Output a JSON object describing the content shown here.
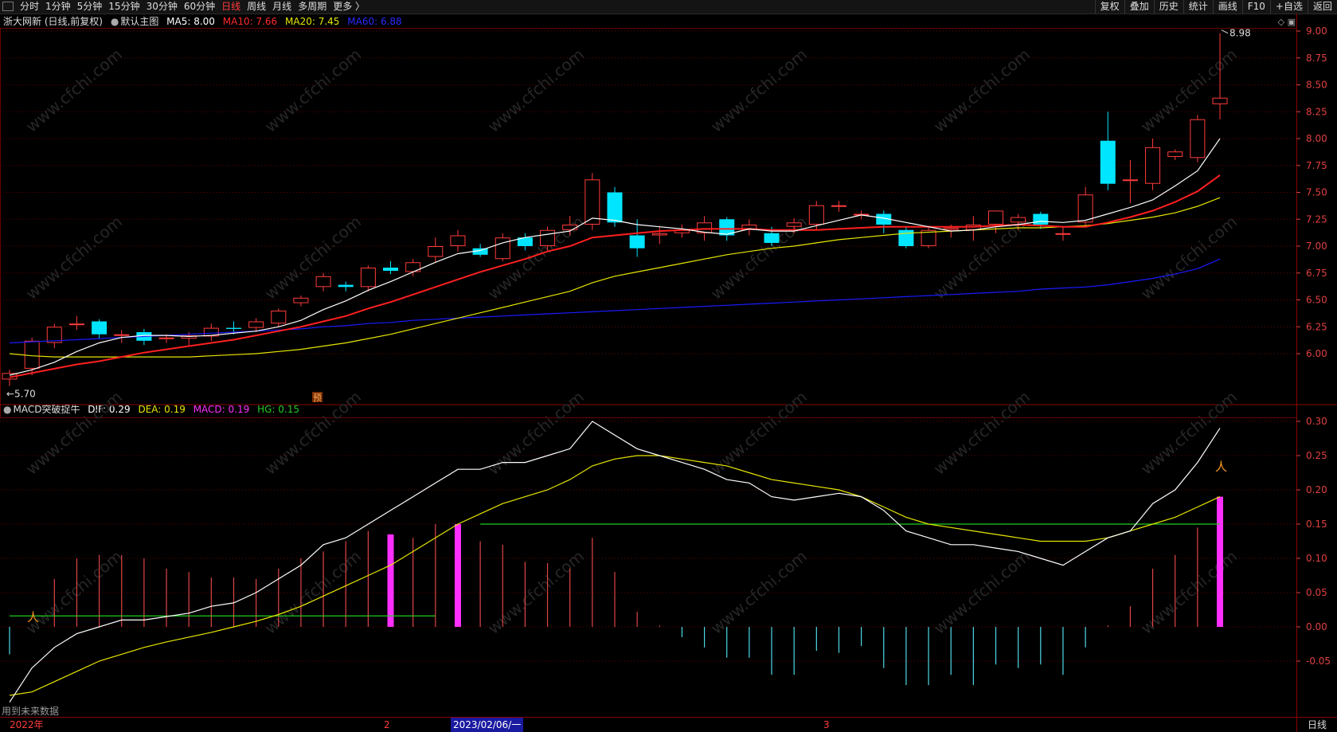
{
  "toolbar": {
    "left_items": [
      {
        "label": "分时",
        "active": false
      },
      {
        "label": "1分钟",
        "active": false
      },
      {
        "label": "5分钟",
        "active": false
      },
      {
        "label": "15分钟",
        "active": false
      },
      {
        "label": "30分钟",
        "active": false
      },
      {
        "label": "60分钟",
        "active": false
      },
      {
        "label": "日线",
        "active": true
      },
      {
        "label": "周线",
        "active": false
      },
      {
        "label": "月线",
        "active": false
      },
      {
        "label": "多周期",
        "active": false
      },
      {
        "label": "更多 〉",
        "active": false
      }
    ],
    "right_items": [
      "复权",
      "叠加",
      "历史",
      "统计",
      "画线",
      "F10",
      "+自选",
      "返回"
    ]
  },
  "main_legend": {
    "stock": "浙大网新 (日线,前复权)",
    "template": "默认主图",
    "ma5": "MA5: 8.00",
    "ma10": "MA10: 7.66",
    "ma20": "MA20: 7.45",
    "ma60": "MA60: 6.88"
  },
  "macd_legend": {
    "name": "MACD突破捉牛",
    "dif": "DIF: 0.29",
    "dea": "DEA: 0.19",
    "macd": "MACD: 0.19",
    "hg": "HG: 0.15"
  },
  "price_axis": [
    "9.00",
    "8.75",
    "8.50",
    "8.25",
    "8.00",
    "7.75",
    "7.50",
    "7.25",
    "7.00",
    "6.75",
    "6.50",
    "6.25",
    "6.00"
  ],
  "macd_axis": [
    "0.30",
    "0.25",
    "0.20",
    "0.15",
    "0.10",
    "0.05",
    "0.00",
    "-0.05"
  ],
  "annotations": {
    "high": "8.98",
    "low": "←5.70",
    "forecast_marker": "预",
    "future_data_note": "用到未来数据",
    "watermark": "www.cfchi.com"
  },
  "statusbar": {
    "year": "2022年",
    "m2": "2",
    "date": "2023/02/06/一",
    "m3": "3",
    "period_tab": "日线"
  },
  "colors": {
    "up": "#ff3b3b",
    "down": "#00e5ff",
    "ma5": "#ffffff",
    "ma10": "#ff2020",
    "ma20": "#e6e600",
    "ma60": "#1a1aff",
    "dif": "#ffffff",
    "dea": "#e6e600",
    "macd_bar": "#ff2fff",
    "hg": "#22cc22",
    "grid": "#6a0000",
    "axis_text": "#e04040"
  },
  "chart_data": {
    "type": "candlestick",
    "ylim": [
      5.62,
      9.06
    ],
    "candles": [
      [
        5.76,
        5.82,
        5.7,
        5.85
      ],
      [
        5.86,
        6.12,
        5.8,
        6.15
      ],
      [
        6.1,
        6.25,
        6.05,
        6.28
      ],
      [
        6.27,
        6.28,
        6.22,
        6.35
      ],
      [
        6.3,
        6.18,
        6.14,
        6.32
      ],
      [
        6.18,
        6.18,
        6.1,
        6.22
      ],
      [
        6.2,
        6.12,
        6.08,
        6.23
      ],
      [
        6.14,
        6.15,
        6.1,
        6.18
      ],
      [
        6.14,
        6.17,
        6.08,
        6.2
      ],
      [
        6.16,
        6.24,
        6.12,
        6.28
      ],
      [
        6.24,
        6.23,
        6.18,
        6.3
      ],
      [
        6.24,
        6.3,
        6.2,
        6.33
      ],
      [
        6.28,
        6.4,
        6.25,
        6.42
      ],
      [
        6.47,
        6.52,
        6.44,
        6.54
      ],
      [
        6.62,
        6.72,
        6.58,
        6.75
      ],
      [
        6.64,
        6.62,
        6.58,
        6.67
      ],
      [
        6.62,
        6.8,
        6.58,
        6.82
      ],
      [
        6.8,
        6.77,
        6.74,
        6.86
      ],
      [
        6.76,
        6.85,
        6.72,
        6.88
      ],
      [
        6.9,
        7.0,
        6.85,
        7.08
      ],
      [
        7.0,
        7.1,
        6.95,
        7.15
      ],
      [
        6.98,
        6.92,
        6.9,
        7.02
      ],
      [
        6.88,
        7.08,
        6.86,
        7.12
      ],
      [
        7.08,
        7.0,
        6.96,
        7.12
      ],
      [
        7.0,
        7.15,
        6.96,
        7.18
      ],
      [
        7.15,
        7.2,
        7.1,
        7.28
      ],
      [
        7.2,
        7.62,
        7.15,
        7.68
      ],
      [
        7.5,
        7.22,
        7.18,
        7.55
      ],
      [
        7.1,
        6.98,
        6.9,
        7.25
      ],
      [
        7.1,
        7.12,
        7.02,
        7.18
      ],
      [
        7.12,
        7.15,
        7.08,
        7.2
      ],
      [
        7.12,
        7.22,
        7.05,
        7.28
      ],
      [
        7.25,
        7.1,
        7.05,
        7.27
      ],
      [
        7.15,
        7.2,
        7.1,
        7.25
      ],
      [
        7.12,
        7.03,
        7.0,
        7.18
      ],
      [
        7.18,
        7.22,
        7.12,
        7.26
      ],
      [
        7.2,
        7.38,
        7.15,
        7.42
      ],
      [
        7.38,
        7.38,
        7.32,
        7.42
      ],
      [
        7.3,
        7.3,
        7.25,
        7.33
      ],
      [
        7.3,
        7.2,
        7.12,
        7.33
      ],
      [
        7.15,
        7.0,
        6.98,
        7.18
      ],
      [
        7.0,
        7.15,
        6.98,
        7.18
      ],
      [
        7.15,
        7.17,
        7.08,
        7.2
      ],
      [
        7.15,
        7.2,
        7.05,
        7.28
      ],
      [
        7.2,
        7.33,
        7.12,
        7.33
      ],
      [
        7.22,
        7.27,
        7.15,
        7.3
      ],
      [
        7.3,
        7.2,
        7.16,
        7.32
      ],
      [
        7.12,
        7.12,
        7.05,
        7.18
      ],
      [
        7.22,
        7.48,
        7.18,
        7.55
      ],
      [
        7.98,
        7.58,
        7.52,
        8.25
      ],
      [
        7.62,
        7.62,
        7.4,
        7.8
      ],
      [
        7.58,
        7.92,
        7.52,
        8.0
      ],
      [
        7.83,
        7.88,
        7.8,
        7.9
      ],
      [
        7.82,
        8.18,
        7.78,
        8.22
      ],
      [
        8.32,
        8.38,
        8.18,
        8.98
      ]
    ],
    "ma5": [
      5.8,
      5.85,
      5.92,
      6.02,
      6.1,
      6.15,
      6.17,
      6.17,
      6.16,
      6.17,
      6.19,
      6.21,
      6.25,
      6.31,
      6.41,
      6.49,
      6.59,
      6.67,
      6.76,
      6.85,
      6.93,
      6.96,
      7.03,
      7.08,
      7.11,
      7.14,
      7.26,
      7.24,
      7.2,
      7.18,
      7.16,
      7.13,
      7.11,
      7.16,
      7.14,
      7.14,
      7.19,
      7.24,
      7.29,
      7.26,
      7.22,
      7.18,
      7.14,
      7.15,
      7.18,
      7.2,
      7.23,
      7.22,
      7.24,
      7.3,
      7.36,
      7.43,
      7.56,
      7.7,
      8.0
    ],
    "ma10": [
      5.78,
      5.82,
      5.86,
      5.9,
      5.93,
      5.97,
      6.01,
      6.04,
      6.07,
      6.1,
      6.13,
      6.17,
      6.21,
      6.25,
      6.3,
      6.35,
      6.42,
      6.48,
      6.55,
      6.62,
      6.69,
      6.76,
      6.82,
      6.88,
      6.95,
      7.0,
      7.08,
      7.1,
      7.12,
      7.14,
      7.15,
      7.16,
      7.16,
      7.16,
      7.15,
      7.15,
      7.15,
      7.16,
      7.17,
      7.18,
      7.18,
      7.18,
      7.18,
      7.18,
      7.19,
      7.2,
      7.19,
      7.18,
      7.18,
      7.22,
      7.27,
      7.33,
      7.41,
      7.51,
      7.66
    ],
    "ma20": [
      6.0,
      5.98,
      5.97,
      5.97,
      5.97,
      5.97,
      5.97,
      5.97,
      5.97,
      5.98,
      5.99,
      6.0,
      6.02,
      6.04,
      6.07,
      6.1,
      6.14,
      6.18,
      6.23,
      6.28,
      6.33,
      6.38,
      6.43,
      6.48,
      6.53,
      6.58,
      6.66,
      6.72,
      6.76,
      6.8,
      6.84,
      6.88,
      6.92,
      6.95,
      6.98,
      7.0,
      7.03,
      7.06,
      7.08,
      7.1,
      7.12,
      7.13,
      7.14,
      7.15,
      7.16,
      7.17,
      7.17,
      7.18,
      7.19,
      7.21,
      7.24,
      7.27,
      7.31,
      7.37,
      7.45
    ],
    "ma60": [
      6.1,
      6.11,
      6.12,
      6.13,
      6.14,
      6.15,
      6.16,
      6.17,
      6.18,
      6.19,
      6.2,
      6.21,
      6.22,
      6.23,
      6.25,
      6.26,
      6.28,
      6.29,
      6.31,
      6.32,
      6.33,
      6.34,
      6.35,
      6.36,
      6.37,
      6.38,
      6.39,
      6.4,
      6.41,
      6.42,
      6.43,
      6.44,
      6.45,
      6.46,
      6.47,
      6.48,
      6.49,
      6.5,
      6.51,
      6.52,
      6.53,
      6.54,
      6.55,
      6.56,
      6.57,
      6.58,
      6.6,
      6.61,
      6.62,
      6.64,
      6.67,
      6.7,
      6.74,
      6.79,
      6.88
    ],
    "macd_ylim": [
      -0.12,
      0.32
    ],
    "dif": [
      -0.11,
      -0.06,
      -0.03,
      -0.01,
      0.0,
      0.01,
      0.01,
      0.015,
      0.02,
      0.03,
      0.035,
      0.05,
      0.07,
      0.09,
      0.12,
      0.13,
      0.15,
      0.17,
      0.19,
      0.21,
      0.23,
      0.23,
      0.24,
      0.24,
      0.25,
      0.26,
      0.3,
      0.28,
      0.26,
      0.25,
      0.24,
      0.23,
      0.215,
      0.21,
      0.19,
      0.185,
      0.19,
      0.195,
      0.19,
      0.17,
      0.14,
      0.13,
      0.12,
      0.12,
      0.115,
      0.11,
      0.1,
      0.09,
      0.11,
      0.13,
      0.14,
      0.18,
      0.2,
      0.24,
      0.29
    ],
    "dea": [
      -0.1,
      -0.095,
      -0.08,
      -0.065,
      -0.05,
      -0.04,
      -0.03,
      -0.022,
      -0.015,
      -0.008,
      0.0,
      0.008,
      0.018,
      0.03,
      0.045,
      0.06,
      0.075,
      0.09,
      0.11,
      0.13,
      0.15,
      0.165,
      0.18,
      0.19,
      0.2,
      0.215,
      0.235,
      0.245,
      0.25,
      0.25,
      0.245,
      0.24,
      0.235,
      0.225,
      0.215,
      0.21,
      0.205,
      0.2,
      0.19,
      0.175,
      0.16,
      0.15,
      0.145,
      0.14,
      0.135,
      0.13,
      0.125,
      0.125,
      0.125,
      0.13,
      0.14,
      0.15,
      0.16,
      0.175,
      0.19
    ],
    "macd": [
      -0.04,
      0.0,
      0.07,
      0.1,
      0.105,
      0.105,
      0.1,
      0.085,
      0.08,
      0.072,
      0.072,
      0.07,
      0.085,
      0.1,
      0.11,
      0.125,
      0.14,
      0.135,
      0.13,
      0.15,
      0.15,
      0.125,
      0.12,
      0.095,
      0.093,
      0.085,
      0.13,
      0.08,
      0.022,
      0.002,
      -0.015,
      -0.03,
      -0.045,
      -0.045,
      -0.07,
      -0.07,
      -0.035,
      -0.038,
      -0.028,
      -0.06,
      -0.085,
      -0.085,
      -0.07,
      -0.085,
      -0.055,
      -0.06,
      -0.055,
      -0.07,
      -0.03,
      0.002,
      0.03,
      0.085,
      0.105,
      0.145,
      0.19
    ],
    "hg_level": 0.15
  }
}
